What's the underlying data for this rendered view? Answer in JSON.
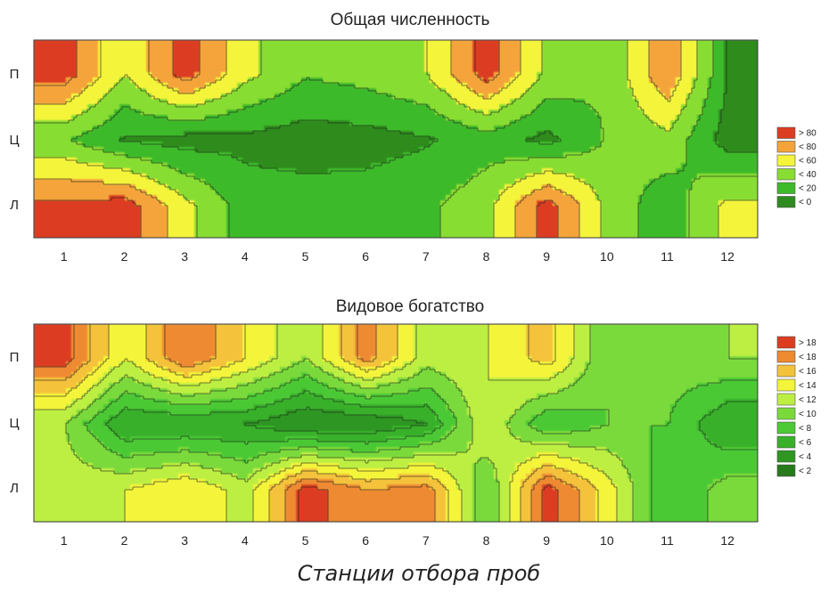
{
  "xlabel": "Станции отбора проб",
  "colors": {
    "abundance": [
      "#2e8b1e",
      "#3cba2a",
      "#88dd33",
      "#f4f43a",
      "#f4a43a",
      "#dc3c20"
    ],
    "richness": [
      "#267a1a",
      "#2f9622",
      "#39b02a",
      "#4cc934",
      "#7ada3a",
      "#bdef42",
      "#f4f43a",
      "#f4c23a",
      "#ee8a30",
      "#dc3c20"
    ]
  },
  "chart_data": [
    {
      "type": "heatmap",
      "title": "Общая численность",
      "x": [
        "1",
        "2",
        "3",
        "4",
        "5",
        "6",
        "7",
        "8",
        "9",
        "10",
        "11",
        "12"
      ],
      "y": [
        "Л",
        "Ц",
        "П"
      ],
      "legend": [
        "> 80",
        "< 80",
        "< 60",
        "< 40",
        "< 20",
        "< 0"
      ],
      "legend_position": "right",
      "zlim": [
        0,
        100
      ],
      "values": [
        [
          88,
          92,
          55,
          25,
          25,
          25,
          30,
          45,
          92,
          45,
          22,
          55
        ],
        [
          35,
          15,
          10,
          12,
          8,
          10,
          15,
          25,
          12,
          35,
          45,
          8
        ],
        [
          92,
          50,
          92,
          55,
          35,
          40,
          50,
          92,
          45,
          35,
          82,
          15
        ]
      ]
    },
    {
      "type": "heatmap",
      "title": "Видовое богатство",
      "x": [
        "1",
        "2",
        "3",
        "4",
        "5",
        "6",
        "7",
        "8",
        "9",
        "10",
        "11",
        "12"
      ],
      "y": [
        "Л",
        "Ц",
        "П"
      ],
      "legend": [
        "> 18",
        "< 18",
        "< 16",
        "< 14",
        "< 12",
        "< 10",
        "< 8",
        "< 6",
        "< 4",
        "< 2"
      ],
      "legend_position": "right",
      "zlim": [
        0,
        20
      ],
      "values": [
        [
          11,
          12,
          14,
          11,
          19,
          16,
          17,
          8,
          19,
          13,
          6,
          9
        ],
        [
          10,
          4,
          4,
          4,
          2,
          2,
          4,
          12,
          6,
          8,
          8,
          4
        ],
        [
          19,
          12,
          18,
          14,
          10,
          17,
          11,
          12,
          15,
          8,
          9,
          10
        ]
      ]
    }
  ]
}
